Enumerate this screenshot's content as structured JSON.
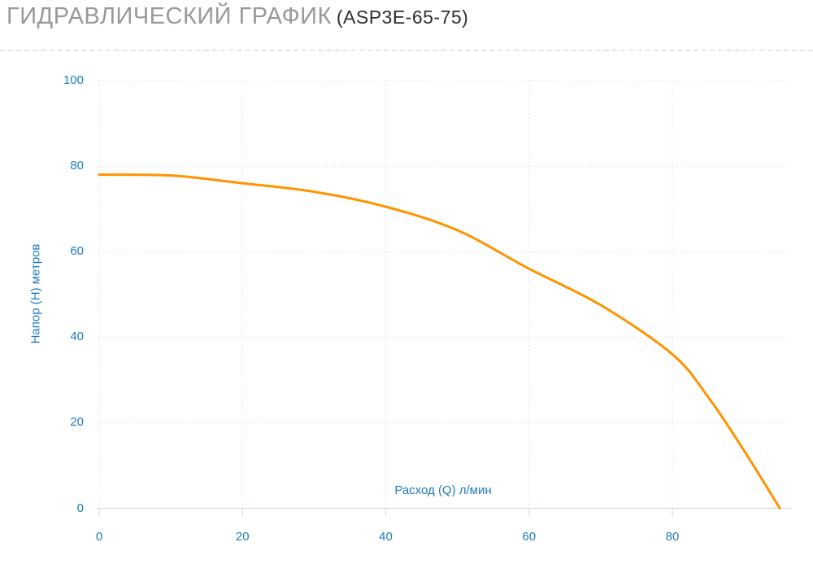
{
  "page": {
    "title_main": "ГИДРАВЛИЧЕСКИЙ ГРАФИК",
    "title_model": "(ASP3E-65-75)"
  },
  "chart_data": {
    "type": "line",
    "title": "ГИДРАВЛИЧЕСКИЙ ГРАФИК (ASP3E-65-75)",
    "xlabel": "Расход (Q) л/мин",
    "ylabel": "Напор (H) метров",
    "xlim": [
      0,
      96
    ],
    "ylim": [
      0,
      100
    ],
    "xticks": [
      0,
      20,
      40,
      60,
      80
    ],
    "yticks": [
      0,
      20,
      40,
      60,
      80,
      100
    ],
    "grid": "dotted",
    "legend": "none",
    "series": [
      {
        "x": [
          0,
          10,
          20,
          30,
          40,
          50,
          60,
          70,
          80,
          85,
          90,
          95
        ],
        "values": [
          78,
          77.8,
          76,
          74,
          70.5,
          65,
          56,
          47.5,
          36,
          26,
          13.5,
          0
        ]
      }
    ],
    "colors": {
      "line": "#ff9300",
      "axis_labels": "#1e7cc1",
      "axis_line": "#ccd6eb",
      "grid": "#dedede",
      "title_main": "#97999b",
      "title_model": "#2e2e30"
    }
  }
}
